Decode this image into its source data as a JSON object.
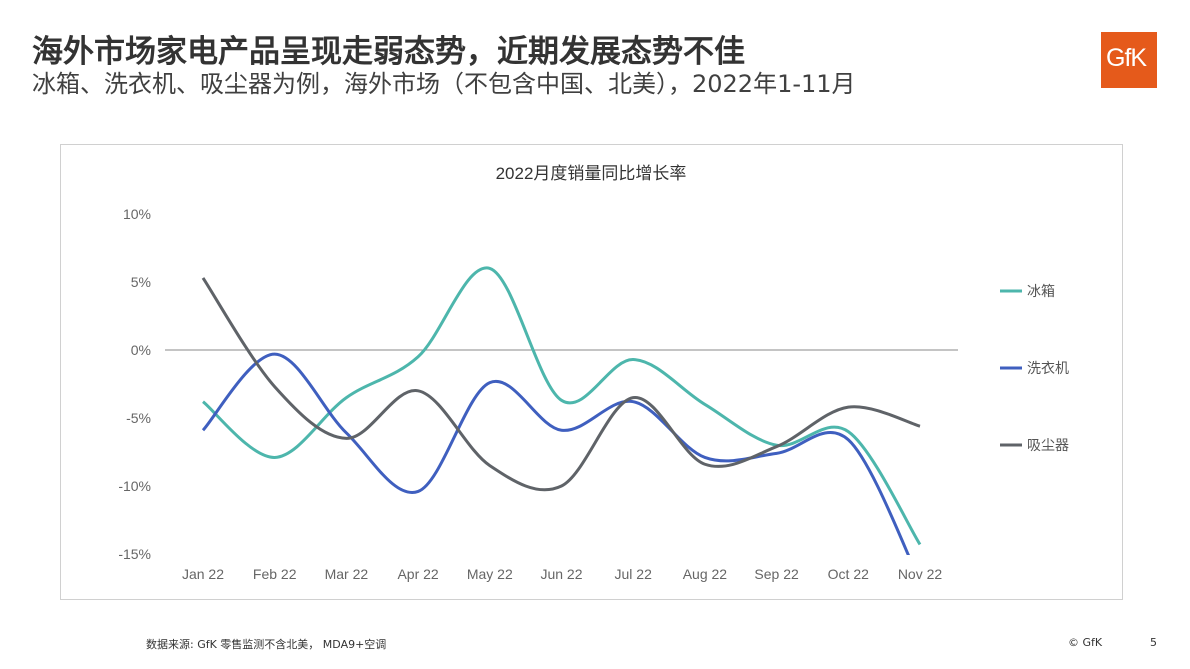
{
  "header": {
    "title": "海外市场家电产品呈现走弱态势，近期发展态势不佳",
    "subtitle": "冰箱、洗衣机、吸尘器为例，海外市场（不包含中国、北美），2022年1-11月"
  },
  "logo": {
    "text": "GfK",
    "color": "#e55a1b"
  },
  "footer": {
    "source": "数据来源: GfK 零售监测不含北美， MDA9+空调",
    "copyright": "© GfK",
    "page_number": "5"
  },
  "chart_data": {
    "type": "line",
    "title": "2022月度销量同比增长率",
    "categories": [
      "Jan 22",
      "Feb 22",
      "Mar 22",
      "Apr 22",
      "May 22",
      "Jun 22",
      "Jul 22",
      "Aug 22",
      "Sep 22",
      "Oct 22",
      "Nov 22"
    ],
    "yticks": [
      "10%",
      "5%",
      "0%",
      "-5%",
      "-10%",
      "-15%"
    ],
    "ylim": [
      -15,
      10
    ],
    "unit": "%",
    "smooth": true,
    "legend_position": "right",
    "grid": false,
    "series": [
      {
        "name": "冰箱",
        "color": "#4db6ac",
        "values": [
          -3.8,
          -7.9,
          -3.5,
          -0.5,
          6.0,
          -3.7,
          -0.7,
          -4.0,
          -7.0,
          -6.0,
          -14.3
        ]
      },
      {
        "name": "洗衣机",
        "color": "#3f5fbf",
        "values": [
          -5.9,
          -0.3,
          -6.1,
          -10.4,
          -2.4,
          -5.9,
          -3.8,
          -7.9,
          -7.6,
          -6.6,
          -17.0
        ]
      },
      {
        "name": "吸尘器",
        "color": "#5f6368",
        "values": [
          5.3,
          -2.7,
          -6.5,
          -3.0,
          -8.5,
          -10.0,
          -3.5,
          -8.4,
          -7.1,
          -4.2,
          -5.6
        ]
      }
    ]
  }
}
